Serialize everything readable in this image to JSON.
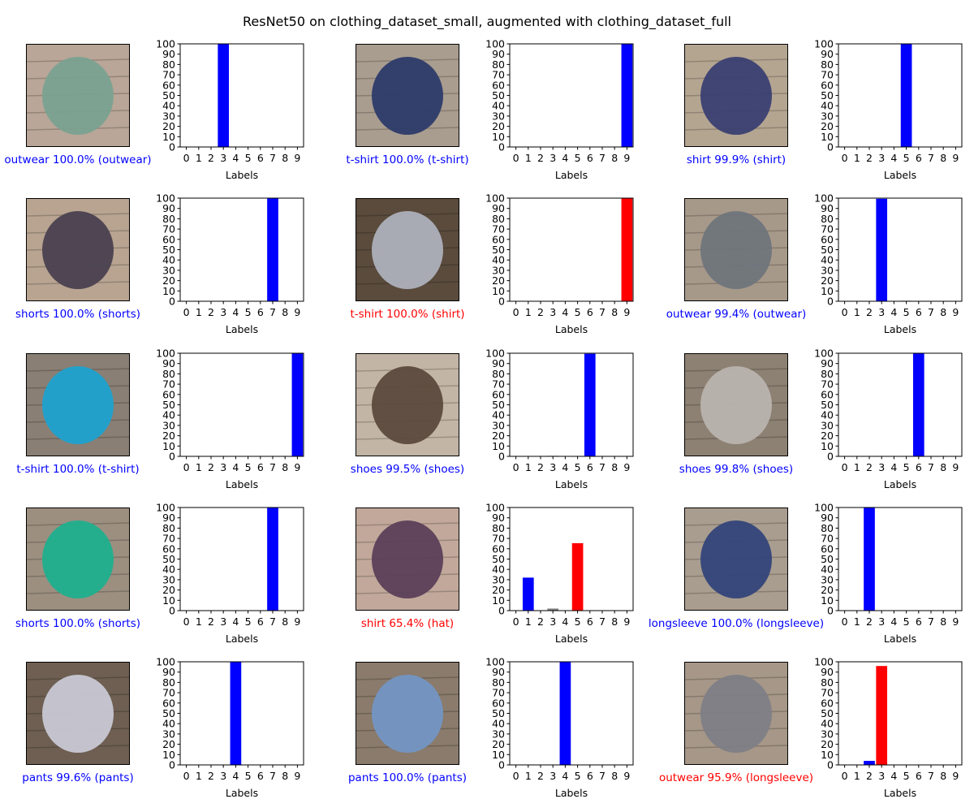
{
  "figure": {
    "title": "ResNet50 on clothing_dataset_small, augmented with clothing_dataset_full"
  },
  "colors": {
    "correct": "#0000ff",
    "wrong": "#ff0000",
    "other": "#808080"
  },
  "chart_data": {
    "type": "bar",
    "categories": [
      "0",
      "1",
      "2",
      "3",
      "4",
      "5",
      "6",
      "7",
      "8",
      "9"
    ],
    "xlabel": "Labels",
    "ylim": [
      0,
      100
    ],
    "yticks": [
      0,
      10,
      20,
      30,
      40,
      50,
      60,
      70,
      80,
      90,
      100
    ],
    "panels": [
      {
        "image": "green-outwear-photo",
        "caption": "outwear 100.0% (outwear)",
        "predicted": 3,
        "true": 3,
        "correct": true,
        "values": [
          0,
          0,
          0,
          100,
          0,
          0,
          0,
          0,
          0,
          0
        ]
      },
      {
        "image": "navy-tshirt-photo",
        "caption": "t-shirt 100.0% (t-shirt)",
        "predicted": 9,
        "true": 9,
        "correct": true,
        "values": [
          0,
          0,
          0,
          0,
          0,
          0,
          0,
          0,
          0,
          100
        ]
      },
      {
        "image": "patterned-shirt-photo",
        "caption": "shirt 99.9% (shirt)",
        "predicted": 5,
        "true": 5,
        "correct": true,
        "values": [
          0,
          0,
          0,
          0.1,
          0,
          99.9,
          0,
          0,
          0,
          0
        ]
      },
      {
        "image": "grey-shorts-photo",
        "caption": "shorts 100.0% (shorts)",
        "predicted": 7,
        "true": 7,
        "correct": true,
        "values": [
          0,
          0,
          0,
          0,
          0,
          0,
          0,
          100,
          0,
          0
        ]
      },
      {
        "image": "grey-polo-photo",
        "caption": "t-shirt 100.0% (shirt)",
        "predicted": 9,
        "true": 5,
        "correct": false,
        "values": [
          0,
          0,
          0,
          0,
          0,
          0,
          0,
          0,
          0,
          100
        ]
      },
      {
        "image": "grey-jacket-photo",
        "caption": "outwear 99.4% (outwear)",
        "predicted": 3,
        "true": 3,
        "correct": true,
        "values": [
          0,
          0,
          0,
          99.4,
          0,
          0.5,
          0,
          0,
          0,
          0
        ]
      },
      {
        "image": "blue-tshirt-photo",
        "caption": "t-shirt 100.0% (t-shirt)",
        "predicted": 9,
        "true": 9,
        "correct": true,
        "values": [
          0,
          0,
          0,
          0,
          0,
          0,
          0,
          0,
          0,
          100
        ]
      },
      {
        "image": "brown-boots-photo",
        "caption": "shoes 99.5% (shoes)",
        "predicted": 6,
        "true": 6,
        "correct": true,
        "values": [
          0,
          0,
          0,
          0.5,
          0,
          0,
          99.5,
          0,
          0,
          0
        ]
      },
      {
        "image": "grey-sneakers-photo",
        "caption": "shoes 99.8% (shoes)",
        "predicted": 6,
        "true": 6,
        "correct": true,
        "values": [
          0,
          0,
          0,
          0,
          0,
          0.2,
          99.8,
          0,
          0,
          0
        ]
      },
      {
        "image": "green-shorts-photo",
        "caption": "shorts 100.0% (shorts)",
        "predicted": 7,
        "true": 7,
        "correct": true,
        "values": [
          0,
          0,
          0,
          0,
          0,
          0,
          0,
          100,
          0,
          0
        ]
      },
      {
        "image": "purple-cap-photo",
        "caption": "shirt 65.4% (hat)",
        "predicted": 5,
        "true": 1,
        "correct": false,
        "values": [
          0,
          32,
          0,
          2,
          0,
          65.4,
          0,
          0,
          0,
          0
        ]
      },
      {
        "image": "navy-longsleeve-photo",
        "caption": "longsleeve 100.0% (longsleeve)",
        "predicted": 2,
        "true": 2,
        "correct": true,
        "values": [
          0,
          0,
          100,
          0,
          0,
          0,
          0,
          0,
          0,
          0
        ]
      },
      {
        "image": "white-pants-photo",
        "caption": "pants 99.6% (pants)",
        "predicted": 4,
        "true": 4,
        "correct": true,
        "values": [
          0.4,
          0,
          0,
          0,
          99.6,
          0,
          0,
          0,
          0,
          0
        ]
      },
      {
        "image": "jeans-photo",
        "caption": "pants 100.0% (pants)",
        "predicted": 4,
        "true": 4,
        "correct": true,
        "values": [
          0,
          0,
          0,
          0,
          100,
          0,
          0,
          0,
          0,
          0
        ]
      },
      {
        "image": "raglan-longsleeve-photo",
        "caption": "outwear 95.9% (longsleeve)",
        "predicted": 3,
        "true": 2,
        "correct": false,
        "values": [
          0.2,
          0,
          3.9,
          95.9,
          0,
          0,
          0,
          0,
          0,
          0
        ]
      }
    ]
  }
}
